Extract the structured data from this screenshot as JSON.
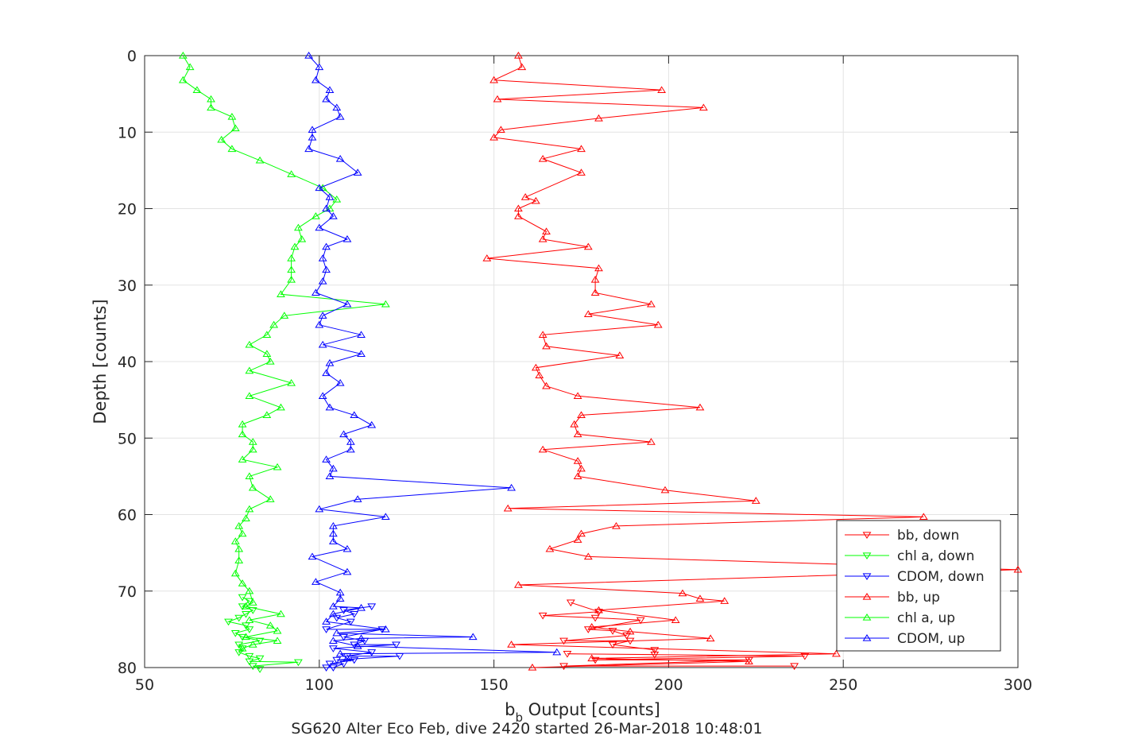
{
  "chart_data": {
    "type": "line",
    "xlabel_main": "b",
    "xlabel_sub": "b",
    "xlabel_rest": " Output [counts]",
    "ylabel": "Depth [counts]",
    "subtitle": "SG620 Alter Eco Feb, dive 2420 started 26-Mar-2018 10:48:01",
    "xlim": [
      50,
      300
    ],
    "ylim": [
      0,
      80
    ],
    "y_reversed": true,
    "grid": true,
    "legend_position": "bottom-right",
    "x_ticks": [
      "50",
      "100",
      "150",
      "200",
      "250",
      "300"
    ],
    "y_ticks": [
      "0",
      "10",
      "20",
      "30",
      "40",
      "50",
      "60",
      "70",
      "80"
    ],
    "series": [
      {
        "name": "bb, down",
        "color": "#ff0000",
        "marker": "triangle-down",
        "points": [
          [
            172,
            71.5
          ],
          [
            180,
            72.7
          ],
          [
            164,
            73.2
          ],
          [
            179,
            73.5
          ],
          [
            192,
            73.8
          ],
          [
            177,
            75
          ],
          [
            184,
            75.2
          ],
          [
            188,
            75.8
          ],
          [
            170,
            76.5
          ],
          [
            189,
            76.5
          ],
          [
            184,
            77
          ],
          [
            196,
            77.7
          ],
          [
            196,
            78.3
          ],
          [
            171,
            78.2
          ],
          [
            239,
            78.5
          ],
          [
            179,
            79
          ],
          [
            223,
            79
          ],
          [
            170,
            79.8
          ],
          [
            236,
            79.8
          ]
        ]
      },
      {
        "name": "chl a, down",
        "color": "#00ff00",
        "marker": "triangle-down",
        "points": [
          [
            78,
            70.8
          ],
          [
            80,
            71.3
          ],
          [
            78,
            72
          ],
          [
            81,
            72.5
          ],
          [
            79,
            73
          ],
          [
            77,
            73.5
          ],
          [
            74,
            74
          ],
          [
            79,
            74.5
          ],
          [
            80,
            75
          ],
          [
            76,
            75.5
          ],
          [
            78,
            76
          ],
          [
            83,
            76.5
          ],
          [
            77,
            77
          ],
          [
            78,
            77.5
          ],
          [
            77,
            78
          ],
          [
            80,
            78.5
          ],
          [
            83,
            78.8
          ],
          [
            80,
            79.2
          ],
          [
            94,
            79.3
          ],
          [
            81,
            79.8
          ],
          [
            83,
            80.2
          ]
        ]
      },
      {
        "name": "CDOM, down",
        "color": "#0000ff",
        "marker": "triangle-down",
        "points": [
          [
            115,
            72
          ],
          [
            107,
            72.5
          ],
          [
            110,
            73
          ],
          [
            105,
            73.5
          ],
          [
            109,
            74
          ],
          [
            102,
            75
          ],
          [
            118,
            75
          ],
          [
            107,
            76
          ],
          [
            113,
            76.5
          ],
          [
            110,
            77
          ],
          [
            122,
            77
          ],
          [
            104,
            77.5
          ],
          [
            115,
            78
          ],
          [
            108,
            78.5
          ],
          [
            123,
            78.5
          ],
          [
            105,
            79
          ],
          [
            110,
            79
          ],
          [
            103,
            79.5
          ],
          [
            107,
            79.5
          ],
          [
            104,
            80
          ],
          [
            102,
            80
          ]
        ]
      },
      {
        "name": "bb, up",
        "color": "#ff0000",
        "marker": "triangle-up",
        "points": [
          [
            157,
            0
          ],
          [
            158,
            1.5
          ],
          [
            150,
            3.2
          ],
          [
            198,
            4.5
          ],
          [
            151,
            5.7
          ],
          [
            210,
            6.8
          ],
          [
            180,
            8.2
          ],
          [
            152,
            9.7
          ],
          [
            150,
            10.7
          ],
          [
            175,
            12.2
          ],
          [
            164,
            13.5
          ],
          [
            175,
            15.3
          ],
          [
            159,
            18.5
          ],
          [
            162,
            19
          ],
          [
            157,
            20
          ],
          [
            157,
            21
          ],
          [
            165,
            23
          ],
          [
            164,
            24
          ],
          [
            177,
            25
          ],
          [
            148,
            26.5
          ],
          [
            180,
            27.8
          ],
          [
            179,
            29.3
          ],
          [
            179,
            31
          ],
          [
            195,
            32.5
          ],
          [
            177,
            33.8
          ],
          [
            197,
            35.2
          ],
          [
            164,
            36.5
          ],
          [
            165,
            38
          ],
          [
            186,
            39.2
          ],
          [
            162,
            40.8
          ],
          [
            163,
            41.8
          ],
          [
            165,
            43.2
          ],
          [
            174,
            44.5
          ],
          [
            209,
            46
          ],
          [
            175,
            47
          ],
          [
            173,
            48.2
          ],
          [
            174,
            49.5
          ],
          [
            195,
            50.5
          ],
          [
            164,
            51.5
          ],
          [
            174,
            53
          ],
          [
            175,
            54
          ],
          [
            174,
            55
          ],
          [
            199,
            56.8
          ],
          [
            225,
            58.2
          ],
          [
            154,
            59.2
          ],
          [
            273,
            60.3
          ],
          [
            185,
            61.5
          ],
          [
            175,
            62.5
          ],
          [
            174,
            63.3
          ],
          [
            166,
            64.5
          ],
          [
            177,
            65.5
          ],
          [
            300,
            67.2
          ],
          [
            157,
            69.2
          ],
          [
            204,
            70.3
          ],
          [
            209,
            71
          ],
          [
            216,
            71.3
          ],
          [
            180,
            72.5
          ],
          [
            202,
            73.8
          ],
          [
            178,
            74.7
          ],
          [
            189,
            75.3
          ],
          [
            212,
            76.2
          ],
          [
            155,
            77
          ],
          [
            248,
            78.2
          ],
          [
            178,
            78.8
          ],
          [
            223,
            79.2
          ],
          [
            161,
            80
          ]
        ]
      },
      {
        "name": "chl a, up",
        "color": "#00ff00",
        "marker": "triangle-up",
        "points": [
          [
            61,
            0
          ],
          [
            63,
            1.5
          ],
          [
            61,
            3.2
          ],
          [
            65,
            4.5
          ],
          [
            69,
            5.7
          ],
          [
            69,
            6.8
          ],
          [
            75,
            8
          ],
          [
            76,
            9.5
          ],
          [
            72,
            11
          ],
          [
            75,
            12.2
          ],
          [
            83,
            13.7
          ],
          [
            92,
            15.5
          ],
          [
            101,
            17.3
          ],
          [
            105,
            18.8
          ],
          [
            103,
            20
          ],
          [
            99,
            21
          ],
          [
            94,
            22.5
          ],
          [
            95,
            24
          ],
          [
            93,
            25
          ],
          [
            92,
            26.5
          ],
          [
            92,
            28
          ],
          [
            92,
            29.3
          ],
          [
            89,
            31.2
          ],
          [
            119,
            32.5
          ],
          [
            90,
            34
          ],
          [
            87,
            35.2
          ],
          [
            85,
            36.5
          ],
          [
            80,
            37.8
          ],
          [
            85,
            39
          ],
          [
            86,
            40
          ],
          [
            80,
            41.2
          ],
          [
            92,
            42.8
          ],
          [
            80,
            44.5
          ],
          [
            89,
            46
          ],
          [
            85,
            47
          ],
          [
            78,
            48.2
          ],
          [
            78,
            49.5
          ],
          [
            81,
            50.5
          ],
          [
            81,
            51.5
          ],
          [
            78,
            52.8
          ],
          [
            88,
            53.8
          ],
          [
            80,
            55
          ],
          [
            81,
            56.5
          ],
          [
            86,
            58
          ],
          [
            80,
            59.3
          ],
          [
            79,
            60.5
          ],
          [
            77,
            61.5
          ],
          [
            78,
            62.5
          ],
          [
            76,
            63.5
          ],
          [
            77,
            64.5
          ],
          [
            77,
            66
          ],
          [
            76,
            67.7
          ],
          [
            78,
            69
          ],
          [
            80,
            70
          ],
          [
            81,
            71.5
          ],
          [
            79,
            72
          ],
          [
            89,
            73
          ],
          [
            80,
            73.8
          ],
          [
            86,
            74.5
          ],
          [
            88,
            75.2
          ],
          [
            79,
            76
          ],
          [
            88,
            76.5
          ],
          [
            81,
            77
          ],
          [
            78,
            77.5
          ]
        ]
      },
      {
        "name": "CDOM, up",
        "color": "#0000ff",
        "marker": "triangle-up",
        "points": [
          [
            97,
            0
          ],
          [
            100,
            1.5
          ],
          [
            99,
            3.2
          ],
          [
            103,
            4.5
          ],
          [
            102,
            5.7
          ],
          [
            105,
            6.8
          ],
          [
            106,
            8
          ],
          [
            98,
            9.7
          ],
          [
            98,
            10.7
          ],
          [
            97,
            12.2
          ],
          [
            106,
            13.5
          ],
          [
            111,
            15.3
          ],
          [
            100,
            17.3
          ],
          [
            103,
            18.5
          ],
          [
            102,
            20
          ],
          [
            104,
            21
          ],
          [
            100,
            22.5
          ],
          [
            108,
            24
          ],
          [
            102,
            25
          ],
          [
            101,
            26.5
          ],
          [
            102,
            28
          ],
          [
            101,
            29.5
          ],
          [
            99,
            31
          ],
          [
            108,
            32.5
          ],
          [
            101,
            34
          ],
          [
            100,
            35.2
          ],
          [
            112,
            36.5
          ],
          [
            101,
            37.8
          ],
          [
            112,
            39
          ],
          [
            103,
            40.2
          ],
          [
            102,
            41.5
          ],
          [
            106,
            42.8
          ],
          [
            101,
            44.5
          ],
          [
            103,
            46
          ],
          [
            110,
            47
          ],
          [
            115,
            48.3
          ],
          [
            107,
            49.5
          ],
          [
            109,
            50.5
          ],
          [
            109,
            51.5
          ],
          [
            102,
            52.8
          ],
          [
            104,
            54
          ],
          [
            103,
            55
          ],
          [
            155,
            56.5
          ],
          [
            111,
            58
          ],
          [
            100,
            59.3
          ],
          [
            119,
            60.3
          ],
          [
            104,
            61.5
          ],
          [
            104,
            62.5
          ],
          [
            104,
            63.5
          ],
          [
            108,
            64.5
          ],
          [
            98,
            65.5
          ],
          [
            108,
            67.5
          ],
          [
            99,
            68.8
          ],
          [
            106,
            70.2
          ],
          [
            106,
            71
          ],
          [
            104,
            72
          ],
          [
            112,
            72.2
          ],
          [
            104,
            73
          ],
          [
            102,
            74
          ],
          [
            119,
            75
          ],
          [
            105,
            75.5
          ],
          [
            144,
            76
          ],
          [
            112,
            76.2
          ],
          [
            104,
            76.5
          ],
          [
            111,
            77.2
          ],
          [
            168,
            78
          ],
          [
            106,
            78.2
          ],
          [
            108,
            78.8
          ]
        ]
      }
    ]
  }
}
